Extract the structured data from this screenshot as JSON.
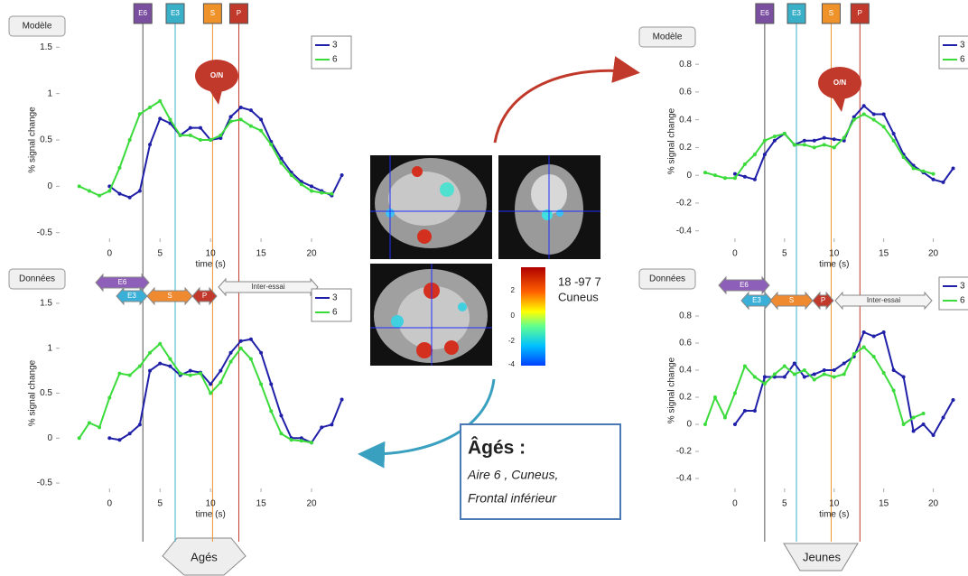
{
  "chart_data": [
    {
      "type": "line",
      "x": [
        -3,
        -2,
        -1,
        0,
        1,
        2,
        3,
        4,
        5,
        6,
        7,
        8,
        9,
        10,
        11,
        12,
        13,
        14,
        15,
        16,
        17,
        18,
        19,
        20,
        21,
        22,
        23
      ],
      "series": [
        {
          "name": "3",
          "color": "#1f1fa8",
          "values": [
            null,
            null,
            null,
            0,
            -0.08,
            -0.12,
            -0.05,
            0.45,
            0.73,
            0.68,
            0.55,
            0.63,
            0.63,
            0.5,
            0.52,
            0.75,
            0.85,
            0.82,
            0.72,
            0.48,
            0.3,
            0.15,
            0.05,
            0,
            -0.05,
            -0.1,
            0.12
          ]
        },
        {
          "name": "6",
          "color": "#3adb3a",
          "values": [
            0,
            -0.05,
            -0.1,
            -0.05,
            0.2,
            0.5,
            0.78,
            0.85,
            0.92,
            0.72,
            0.55,
            0.55,
            0.5,
            0.5,
            0.55,
            0.7,
            0.72,
            0.65,
            0.6,
            0.45,
            0.25,
            0.12,
            0.02,
            -0.05,
            -0.07,
            -0.08,
            null
          ]
        }
      ],
      "xlim": [
        -5.3,
        24.2
      ],
      "xticks": [
        0,
        5,
        10,
        15,
        20
      ],
      "ylim": [
        -0.6,
        1.6
      ],
      "yticks": [
        -0.5,
        0,
        0.5,
        1,
        1.5
      ],
      "x_label": "time (s)",
      "y_label": "% signal change",
      "panel_label": "Modèle",
      "callout": "O/N",
      "events": [
        {
          "label": "E6",
          "x": 3.3,
          "color": "#7b4fa0"
        },
        {
          "label": "E3",
          "x": 6.5,
          "color": "#3ab0c8"
        },
        {
          "label": "S",
          "x": 10.2,
          "color": "#f0922a"
        },
        {
          "label": "P",
          "x": 12.8,
          "color": "#c0392b"
        }
      ]
    },
    {
      "type": "line",
      "x": [
        -3,
        -2,
        -1,
        0,
        1,
        2,
        3,
        4,
        5,
        6,
        7,
        8,
        9,
        10,
        11,
        12,
        13,
        14,
        15,
        16,
        17,
        18,
        19,
        20,
        21,
        22,
        23
      ],
      "series": [
        {
          "name": "3",
          "color": "#1f1fa8",
          "values": [
            null,
            null,
            null,
            0,
            -0.02,
            0.05,
            0.15,
            0.75,
            0.83,
            0.8,
            0.7,
            0.75,
            0.73,
            0.6,
            0.75,
            0.95,
            1.08,
            1.1,
            0.95,
            0.6,
            0.25,
            0,
            0,
            -0.05,
            0.12,
            0.15,
            0.43
          ]
        },
        {
          "name": "6",
          "color": "#3adb3a",
          "values": [
            0,
            0.17,
            0.12,
            0.45,
            0.72,
            0.7,
            0.8,
            0.95,
            1.05,
            0.88,
            0.72,
            0.7,
            0.72,
            0.5,
            0.62,
            0.85,
            1.0,
            0.88,
            0.6,
            0.3,
            0.05,
            -0.02,
            -0.03,
            -0.05,
            null,
            null,
            null
          ]
        }
      ],
      "xlim": [
        -5.3,
        24.2
      ],
      "xticks": [
        0,
        5,
        10,
        15,
        20
      ],
      "ylim": [
        -0.6,
        1.6
      ],
      "yticks": [
        -0.5,
        0,
        0.5,
        1,
        1.5
      ],
      "x_label": "time (s)",
      "y_label": "% signal change",
      "panel_label": "Données",
      "phases": [
        "E6",
        "E3",
        "S",
        "P",
        "Inter-essai"
      ]
    },
    {
      "type": "line",
      "x": [
        -3,
        -2,
        -1,
        0,
        1,
        2,
        3,
        4,
        5,
        6,
        7,
        8,
        9,
        10,
        11,
        12,
        13,
        14,
        15,
        16,
        17,
        18,
        19,
        20,
        21,
        22
      ],
      "series": [
        {
          "name": "3",
          "color": "#1f1fa8",
          "values": [
            null,
            null,
            null,
            0.01,
            -0.01,
            -0.03,
            0.15,
            0.25,
            0.3,
            0.22,
            0.25,
            0.25,
            0.27,
            0.26,
            0.25,
            0.42,
            0.5,
            0.44,
            0.44,
            0.3,
            0.15,
            0.07,
            0.02,
            -0.03,
            -0.05,
            0.05
          ]
        },
        {
          "name": "6",
          "color": "#3adb3a",
          "values": [
            0.02,
            0,
            -0.02,
            -0.02,
            0.08,
            0.15,
            0.25,
            0.28,
            0.3,
            0.22,
            0.22,
            0.2,
            0.22,
            0.2,
            0.27,
            0.4,
            0.44,
            0.4,
            0.35,
            0.25,
            0.13,
            0.05,
            0.03,
            0.01,
            null,
            null
          ]
        }
      ],
      "xlim": [
        -4,
        23.5
      ],
      "xticks": [
        0,
        5,
        10,
        15,
        20
      ],
      "ylim": [
        -0.48,
        0.97
      ],
      "yticks": [
        -0.4,
        -0.2,
        0,
        0.2,
        0.4,
        0.6,
        0.8
      ],
      "x_label": "time (s)",
      "y_label": "% signal change",
      "panel_label": "Modèle",
      "callout": "O/N",
      "events": [
        {
          "label": "E6",
          "x": 3.0,
          "color": "#7b4fa0"
        },
        {
          "label": "E3",
          "x": 6.2,
          "color": "#3ab0c8"
        },
        {
          "label": "S",
          "x": 9.7,
          "color": "#f0922a"
        },
        {
          "label": "P",
          "x": 12.6,
          "color": "#c0392b"
        }
      ]
    },
    {
      "type": "line",
      "x": [
        -3,
        -2,
        -1,
        0,
        1,
        2,
        3,
        4,
        5,
        6,
        7,
        8,
        9,
        10,
        11,
        12,
        13,
        14,
        15,
        16,
        17,
        18,
        19,
        20,
        21,
        22
      ],
      "series": [
        {
          "name": "3",
          "color": "#1f1fa8",
          "values": [
            null,
            null,
            null,
            0,
            0.1,
            0.1,
            0.35,
            0.35,
            0.35,
            0.45,
            0.35,
            0.37,
            0.4,
            0.4,
            0.45,
            0.5,
            0.68,
            0.65,
            0.68,
            0.4,
            0.35,
            -0.05,
            0,
            -0.08,
            0.05,
            0.18
          ]
        },
        {
          "name": "6",
          "color": "#3adb3a",
          "values": [
            0,
            0.2,
            0.05,
            0.23,
            0.43,
            0.35,
            0.3,
            0.37,
            0.43,
            0.37,
            0.4,
            0.33,
            0.37,
            0.35,
            0.37,
            0.52,
            0.57,
            0.5,
            0.38,
            0.25,
            0,
            0.05,
            0.08,
            null,
            null,
            null
          ]
        }
      ],
      "xlim": [
        -4,
        23.5
      ],
      "xticks": [
        0,
        5,
        10,
        15,
        20
      ],
      "ylim": [
        -0.5,
        1.0
      ],
      "yticks": [
        -0.4,
        -0.2,
        0,
        0.2,
        0.4,
        0.6,
        0.8
      ],
      "x_label": "time (s)",
      "y_label": "% signal change",
      "panel_label": "Données",
      "phases": [
        "E6",
        "E3",
        "S",
        "P",
        "Inter-essai"
      ]
    }
  ],
  "colorbar": {
    "ticks": [
      2,
      0,
      -2,
      -4
    ],
    "coordinates": "18 -97 7",
    "region": "Cuneus"
  },
  "summary": {
    "title": "Âgés :",
    "lines": [
      "Aire 6 , Cuneus,",
      "Frontal inférieur"
    ]
  },
  "groups": [
    "Agés",
    "Jeunes"
  ]
}
